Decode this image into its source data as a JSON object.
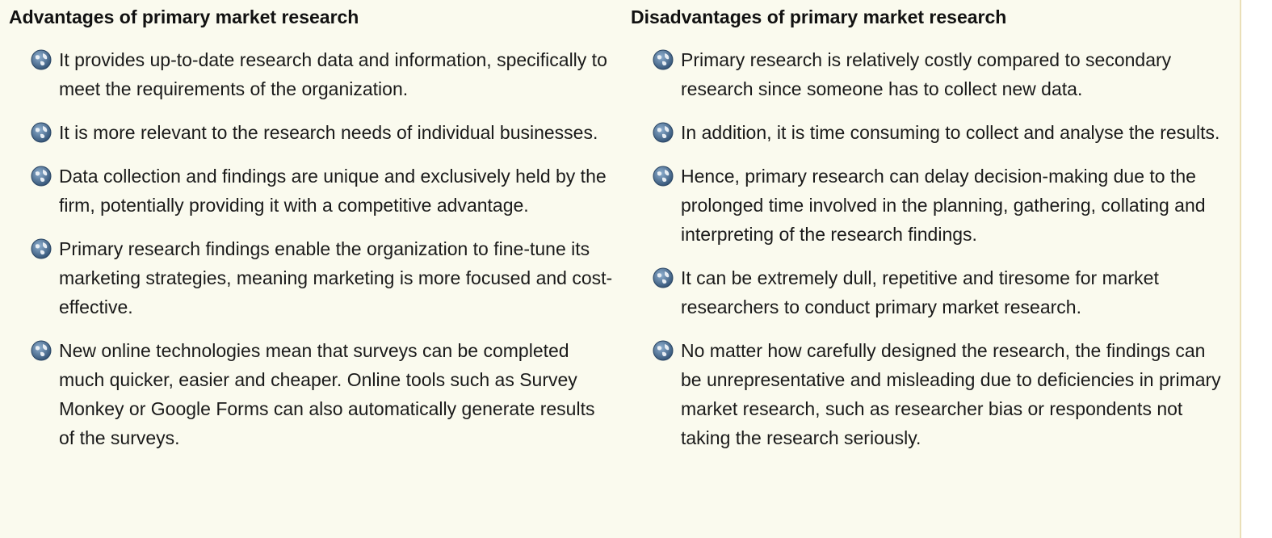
{
  "advantages": {
    "heading": "Advantages of primary market research",
    "items": [
      "It provides up-to-date research data and information, specifically to meet the requirements of the organization.",
      "It is more relevant to the research needs of individual businesses.",
      "Data collection and findings are unique and exclusively held by the firm, potentially providing it with a competitive advantage.",
      "Primary research findings enable the organization to fine-tune its marketing strategies, meaning marketing is more focused and cost-effective.",
      "New online technologies mean that surveys can be completed much quicker, easier and cheaper. Online tools such as Survey Monkey or Google Forms can also automatically generate results of the surveys."
    ]
  },
  "disadvantages": {
    "heading": "Disadvantages of primary market research",
    "items": [
      "Primary research is relatively costly compared to secondary research since someone has to collect new data.",
      "In addition, it is time consuming to collect and analyse the results.",
      "Hence, primary research can delay decision-making due to the prolonged time involved in the planning, gathering, collating and interpreting of the research findings.",
      "It can be extremely dull, repetitive and tiresome for market researchers to conduct primary market research.",
      "No matter how carefully designed the research, the findings can be unrepresentative and misleading due to deficiencies in primary market research, such as researcher bias or respondents not taking the research seriously."
    ]
  },
  "bullet_icon": "globe-bullet-icon",
  "colors": {
    "background": "#fafaee",
    "bullet": "#4a6a8c",
    "text": "#1a1a1a"
  }
}
